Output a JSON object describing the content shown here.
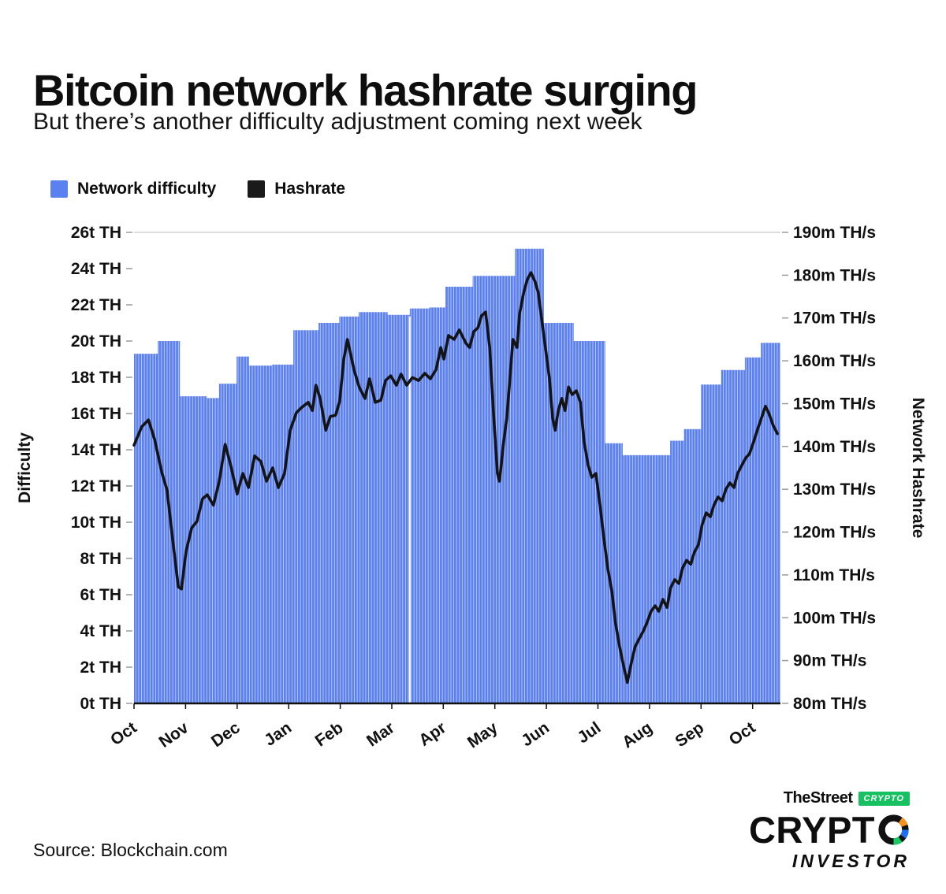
{
  "header": {
    "title": "Bitcoin network hashrate surging",
    "subtitle": "But there’s another difficulty adjustment coming next week"
  },
  "legend": {
    "items": [
      {
        "label": "Network difficulty",
        "color": "#5b80ef"
      },
      {
        "label": "Hashrate",
        "color": "#1a1a1a"
      }
    ]
  },
  "chart_data": {
    "type": "combo",
    "subtype": [
      "bar",
      "line"
    ],
    "x_axis": {
      "tick_labels": [
        "Oct",
        "Nov",
        "Dec",
        "Jan",
        "Feb",
        "Mar",
        "Apr",
        "May",
        "Jun",
        "Jul",
        "Aug",
        "Sep",
        "Oct"
      ],
      "domain_end": 12.54
    },
    "left_axis": {
      "label": "Difficulty",
      "min": 0,
      "max": 26,
      "tick_values": [
        26,
        24,
        22,
        20,
        18,
        16,
        14,
        12,
        10,
        8,
        6,
        4,
        2,
        0
      ],
      "tick_labels": [
        "26t TH",
        "24t TH",
        "22t TH",
        "20t TH",
        "18t TH",
        "16t TH",
        "14t TH",
        "12t TH",
        "10t TH",
        "8t TH",
        "6t TH",
        "4t TH",
        "2t TH",
        "0t TH"
      ]
    },
    "right_axis": {
      "label": "Network Hashrate",
      "min": 80,
      "max": 190,
      "tick_values": [
        190,
        180,
        170,
        160,
        150,
        140,
        130,
        120,
        110,
        100,
        90,
        80
      ],
      "tick_labels": [
        "190m TH/s",
        "180m TH/s",
        "170m TH/s",
        "160m TH/s",
        "150m TH/s",
        "140m TH/s",
        "130m TH/s",
        "120m TH/s",
        "110m TH/s",
        "100m TH/s",
        "90m TH/s",
        "80m TH/s"
      ]
    },
    "divider_month": 5.35,
    "series": [
      {
        "name": "Network difficulty",
        "type": "bar",
        "axis": "left",
        "unit": "t TH",
        "color": "#5b80ef",
        "stripe_color": "#bcc9f9",
        "steps": [
          [
            0.0,
            19.3
          ],
          [
            0.46,
            20.0
          ],
          [
            0.89,
            16.95
          ],
          [
            1.41,
            16.85
          ],
          [
            1.65,
            17.65
          ],
          [
            1.99,
            19.15
          ],
          [
            2.23,
            18.65
          ],
          [
            2.68,
            18.7
          ],
          [
            3.09,
            20.6
          ],
          [
            3.58,
            21.0
          ],
          [
            3.98,
            21.35
          ],
          [
            4.36,
            21.6
          ],
          [
            4.92,
            21.45
          ],
          [
            5.35,
            21.8
          ],
          [
            5.73,
            21.85
          ],
          [
            6.04,
            23.0
          ],
          [
            6.57,
            23.6
          ],
          [
            7.39,
            25.1
          ],
          [
            7.95,
            21.0
          ],
          [
            8.53,
            20.0
          ],
          [
            9.14,
            14.36
          ],
          [
            9.48,
            13.7
          ],
          [
            10.4,
            14.5
          ],
          [
            10.67,
            15.14
          ],
          [
            11.0,
            17.6
          ],
          [
            11.39,
            18.4
          ],
          [
            11.85,
            19.1
          ],
          [
            12.16,
            19.9
          ]
        ]
      },
      {
        "name": "Hashrate",
        "type": "line",
        "axis": "right",
        "unit": "m TH/s",
        "color": "#141414",
        "points": [
          [
            0.0,
            140.3
          ],
          [
            0.15,
            144.6
          ],
          [
            0.28,
            146.2
          ],
          [
            0.4,
            141.6
          ],
          [
            0.54,
            133.9
          ],
          [
            0.64,
            129.8
          ],
          [
            0.75,
            118.3
          ],
          [
            0.86,
            107.2
          ],
          [
            0.92,
            106.7
          ],
          [
            1.01,
            115.5
          ],
          [
            1.12,
            121.0
          ],
          [
            1.22,
            122.5
          ],
          [
            1.33,
            127.8
          ],
          [
            1.42,
            128.7
          ],
          [
            1.54,
            126.3
          ],
          [
            1.65,
            131.7
          ],
          [
            1.77,
            140.5
          ],
          [
            1.88,
            135.4
          ],
          [
            2.0,
            128.9
          ],
          [
            2.11,
            133.7
          ],
          [
            2.22,
            130.4
          ],
          [
            2.34,
            137.8
          ],
          [
            2.46,
            136.5
          ],
          [
            2.57,
            131.9
          ],
          [
            2.69,
            135.0
          ],
          [
            2.8,
            130.4
          ],
          [
            2.92,
            133.7
          ],
          [
            3.03,
            143.8
          ],
          [
            3.15,
            147.9
          ],
          [
            3.26,
            149.2
          ],
          [
            3.38,
            150.3
          ],
          [
            3.46,
            148.4
          ],
          [
            3.53,
            154.3
          ],
          [
            3.61,
            151.2
          ],
          [
            3.72,
            143.8
          ],
          [
            3.81,
            147.0
          ],
          [
            3.91,
            147.3
          ],
          [
            3.99,
            150.6
          ],
          [
            4.07,
            160.4
          ],
          [
            4.14,
            165.0
          ],
          [
            4.27,
            157.8
          ],
          [
            4.37,
            153.8
          ],
          [
            4.48,
            151.2
          ],
          [
            4.57,
            155.8
          ],
          [
            4.68,
            150.3
          ],
          [
            4.79,
            150.8
          ],
          [
            4.88,
            155.4
          ],
          [
            4.98,
            156.5
          ],
          [
            5.09,
            154.3
          ],
          [
            5.18,
            156.9
          ],
          [
            5.29,
            154.3
          ],
          [
            5.4,
            156.1
          ],
          [
            5.52,
            155.4
          ],
          [
            5.64,
            157.1
          ],
          [
            5.75,
            155.8
          ],
          [
            5.86,
            158.0
          ],
          [
            5.95,
            163.1
          ],
          [
            6.01,
            160.4
          ],
          [
            6.1,
            165.9
          ],
          [
            6.21,
            165.0
          ],
          [
            6.31,
            167.2
          ],
          [
            6.44,
            164.1
          ],
          [
            6.51,
            163.1
          ],
          [
            6.59,
            166.8
          ],
          [
            6.67,
            167.7
          ],
          [
            6.74,
            170.5
          ],
          [
            6.82,
            171.4
          ],
          [
            6.9,
            163.1
          ],
          [
            6.97,
            148.4
          ],
          [
            7.05,
            133.7
          ],
          [
            7.09,
            131.9
          ],
          [
            7.17,
            141.1
          ],
          [
            7.23,
            146.6
          ],
          [
            7.28,
            153.9
          ],
          [
            7.35,
            165.0
          ],
          [
            7.43,
            163.1
          ],
          [
            7.48,
            171.0
          ],
          [
            7.56,
            176.0
          ],
          [
            7.63,
            179.0
          ],
          [
            7.7,
            180.6
          ],
          [
            7.78,
            178.5
          ],
          [
            7.84,
            176.0
          ],
          [
            7.94,
            166.8
          ],
          [
            8.0,
            161.3
          ],
          [
            8.06,
            155.8
          ],
          [
            8.12,
            146.6
          ],
          [
            8.17,
            143.8
          ],
          [
            8.23,
            148.4
          ],
          [
            8.3,
            151.2
          ],
          [
            8.36,
            148.4
          ],
          [
            8.43,
            153.9
          ],
          [
            8.5,
            152.1
          ],
          [
            8.58,
            153.0
          ],
          [
            8.66,
            150.3
          ],
          [
            8.73,
            141.1
          ],
          [
            8.81,
            135.6
          ],
          [
            8.88,
            132.8
          ],
          [
            8.96,
            133.7
          ],
          [
            9.04,
            126.3
          ],
          [
            9.11,
            119.0
          ],
          [
            9.19,
            111.6
          ],
          [
            9.27,
            106.1
          ],
          [
            9.34,
            98.8
          ],
          [
            9.42,
            93.2
          ],
          [
            9.5,
            88.6
          ],
          [
            9.57,
            84.9
          ],
          [
            9.65,
            89.6
          ],
          [
            9.72,
            93.2
          ],
          [
            9.8,
            95.1
          ],
          [
            9.88,
            96.9
          ],
          [
            9.95,
            98.8
          ],
          [
            10.03,
            101.5
          ],
          [
            10.11,
            102.8
          ],
          [
            10.18,
            101.5
          ],
          [
            10.26,
            104.3
          ],
          [
            10.34,
            102.4
          ],
          [
            10.41,
            107.0
          ],
          [
            10.49,
            108.9
          ],
          [
            10.57,
            108.0
          ],
          [
            10.64,
            111.6
          ],
          [
            10.72,
            113.4
          ],
          [
            10.8,
            112.5
          ],
          [
            10.87,
            115.3
          ],
          [
            10.95,
            117.1
          ],
          [
            11.02,
            121.7
          ],
          [
            11.1,
            124.5
          ],
          [
            11.18,
            123.6
          ],
          [
            11.25,
            126.3
          ],
          [
            11.33,
            128.2
          ],
          [
            11.41,
            127.3
          ],
          [
            11.48,
            130.0
          ],
          [
            11.56,
            131.5
          ],
          [
            11.64,
            130.4
          ],
          [
            11.71,
            133.7
          ],
          [
            11.79,
            135.6
          ],
          [
            11.87,
            137.4
          ],
          [
            11.94,
            138.3
          ],
          [
            12.02,
            141.1
          ],
          [
            12.09,
            143.8
          ],
          [
            12.17,
            146.6
          ],
          [
            12.25,
            149.4
          ],
          [
            12.32,
            147.6
          ],
          [
            12.4,
            144.9
          ],
          [
            12.48,
            143.0
          ]
        ]
      }
    ]
  },
  "footer": {
    "source": "Source: Blockchain.com"
  },
  "logo": {
    "thestreet": "TheStreet",
    "badge": "CRYPTO",
    "wordmark": "CRYPT",
    "investor": "INVESTOR"
  }
}
